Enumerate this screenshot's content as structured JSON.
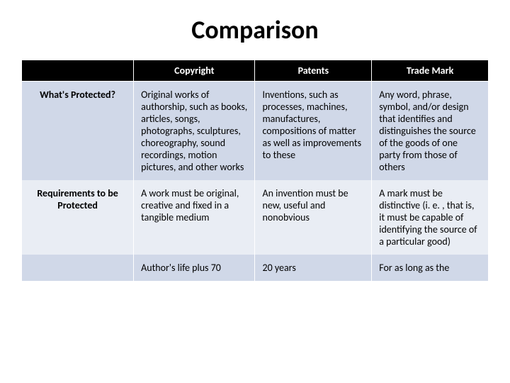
{
  "title": "Comparison",
  "header": {
    "corner": "",
    "col1": "Copyright",
    "col2": "Patents",
    "col3": "Trade Mark"
  },
  "rows": [
    {
      "label": "What's Protected?",
      "copyright": "Original works of authorship, such as books, articles, songs, photographs, sculptures, choreography, sound recordings, motion pictures, and other works",
      "patents": "Inventions, such as processes, machines, manufactures, compositions of matter as well as improvements to these",
      "trademark": "Any word, phrase, symbol, and/or design that identifies and distinguishes the source of the goods of one party from those of others"
    },
    {
      "label": "Requirements to be Protected",
      "copyright": "A work must be original, creative and fixed in a tangible medium",
      "patents": "An invention must be new, useful and nonobvious",
      "trademark": "A mark must be distinctive (i. e. , that is, it must be capable of identifying the source of a particular good)"
    },
    {
      "label": "",
      "copyright": "Author's life plus 70",
      "patents": "20 years",
      "trademark": "For as long as the"
    }
  ],
  "colors": {
    "header_bg": "#000000",
    "header_fg": "#ffffff",
    "band_light": "#d0d8e8",
    "band_dark": "#e9edf4",
    "text": "#000000"
  }
}
